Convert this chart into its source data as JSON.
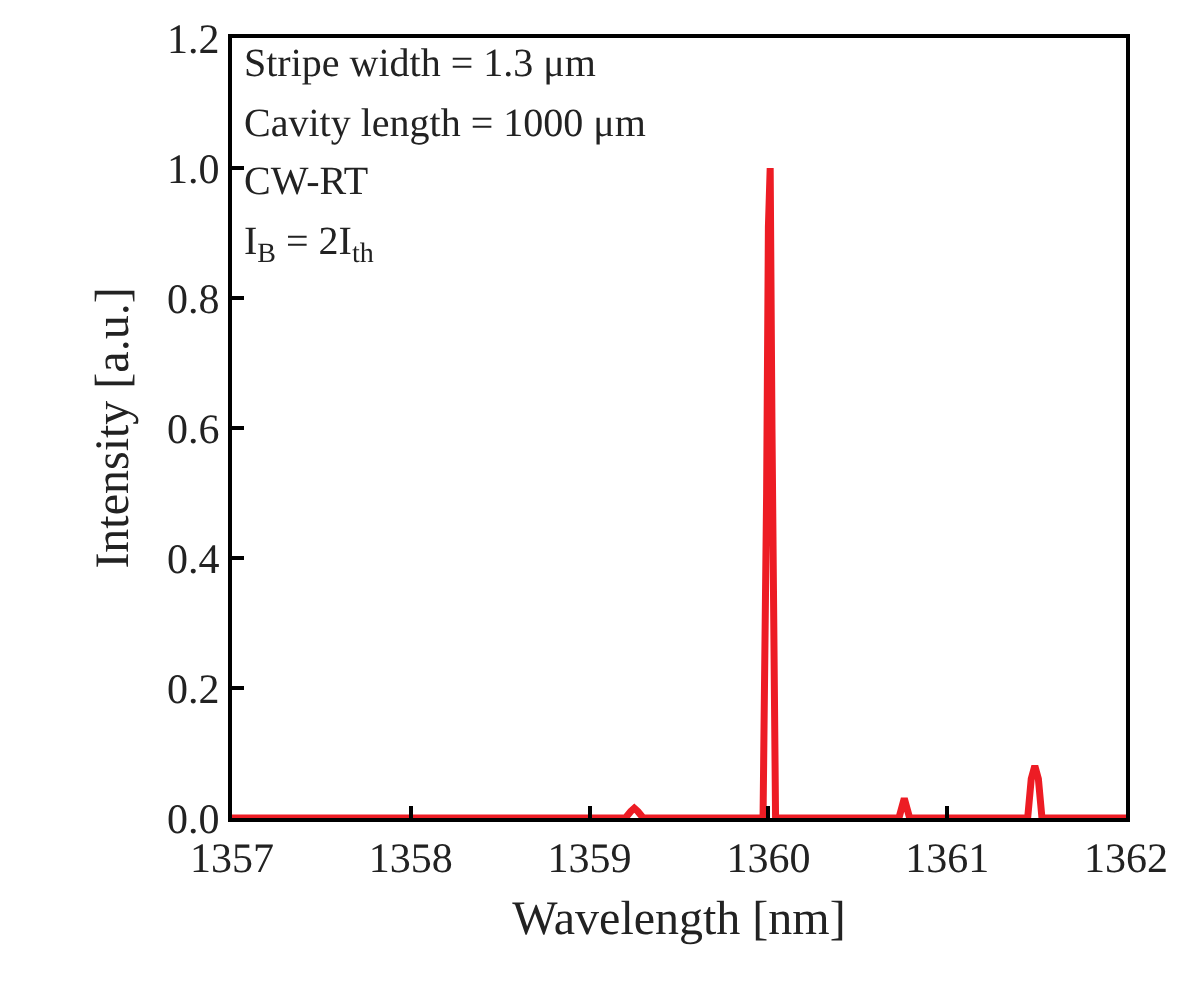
{
  "chart_data": {
    "type": "line",
    "xlabel": "Wavelength [nm]",
    "ylabel": "Intensity [a.u.]",
    "annotations": [
      "Stripe width = 1.3 μm",
      "Cavity length = 1000 μm",
      "CW-RT",
      "I$_{B}$ = 2I$_{th}$"
    ],
    "series": [
      {
        "color": "#ed1c24",
        "x": [
          1357,
          1359.2,
          1359.23,
          1359.25,
          1359.27,
          1359.3,
          1359.97,
          1359.99,
          1360.0,
          1360.01,
          1360.02,
          1360.04,
          1360.73,
          1360.76,
          1360.79,
          1361.45,
          1361.47,
          1361.49,
          1361.51,
          1361.53,
          1362
        ],
        "values": [
          0,
          0,
          0.01,
          0.015,
          0.01,
          0,
          0,
          0.5,
          0.91,
          1.0,
          0.6,
          0,
          0,
          0.03,
          0,
          0,
          0.06,
          0.08,
          0.06,
          0,
          0
        ]
      }
    ],
    "xlim": [
      1357,
      1362
    ],
    "xticks": [
      1357,
      1358,
      1359,
      1360,
      1361,
      1362
    ],
    "ylim": [
      0,
      1.2
    ],
    "yticks": [
      {
        "value": 0,
        "label": "0.0"
      },
      {
        "value": 0.2,
        "label": "0.2"
      },
      {
        "value": 0.4,
        "label": "0.4"
      },
      {
        "value": 0.6,
        "label": "0.6"
      },
      {
        "value": 0.8,
        "label": "0.8"
      },
      {
        "value": 1.0,
        "label": "1.0"
      },
      {
        "value": 1.2,
        "label": "1.2"
      }
    ],
    "grid": false,
    "marker": "none",
    "line_style": "solid"
  }
}
